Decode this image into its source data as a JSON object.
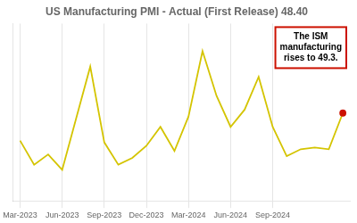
{
  "chart_data": {
    "type": "line",
    "title": "US Manufacturing PMI - Actual (First Release) 48.40",
    "categories": [
      "Mar-2023",
      null,
      null,
      "Jun-2023",
      null,
      null,
      "Sep-2023",
      null,
      null,
      "Dec-2023",
      null,
      null,
      "Mar-2024",
      null,
      null,
      "Jun-2024",
      null,
      null,
      "Sep-2024",
      null,
      null,
      null,
      null,
      null
    ],
    "values": [
      47.7,
      46.3,
      46.9,
      46.0,
      49.0,
      52.0,
      47.6,
      46.3,
      46.7,
      47.4,
      48.5,
      47.1,
      49.1,
      52.9,
      50.3,
      48.5,
      49.5,
      51.4,
      48.5,
      46.8,
      47.2,
      47.3,
      47.2,
      49.3
    ],
    "color": "#d4c400",
    "ylim": [
      44.2,
      54.5
    ],
    "yticks": [],
    "tick_labels": "x",
    "grid": true,
    "annotations": [
      {
        "text": "The ISM\nmanufacturing\nrises to 49.3.",
        "color": "#cc1100"
      }
    ]
  }
}
